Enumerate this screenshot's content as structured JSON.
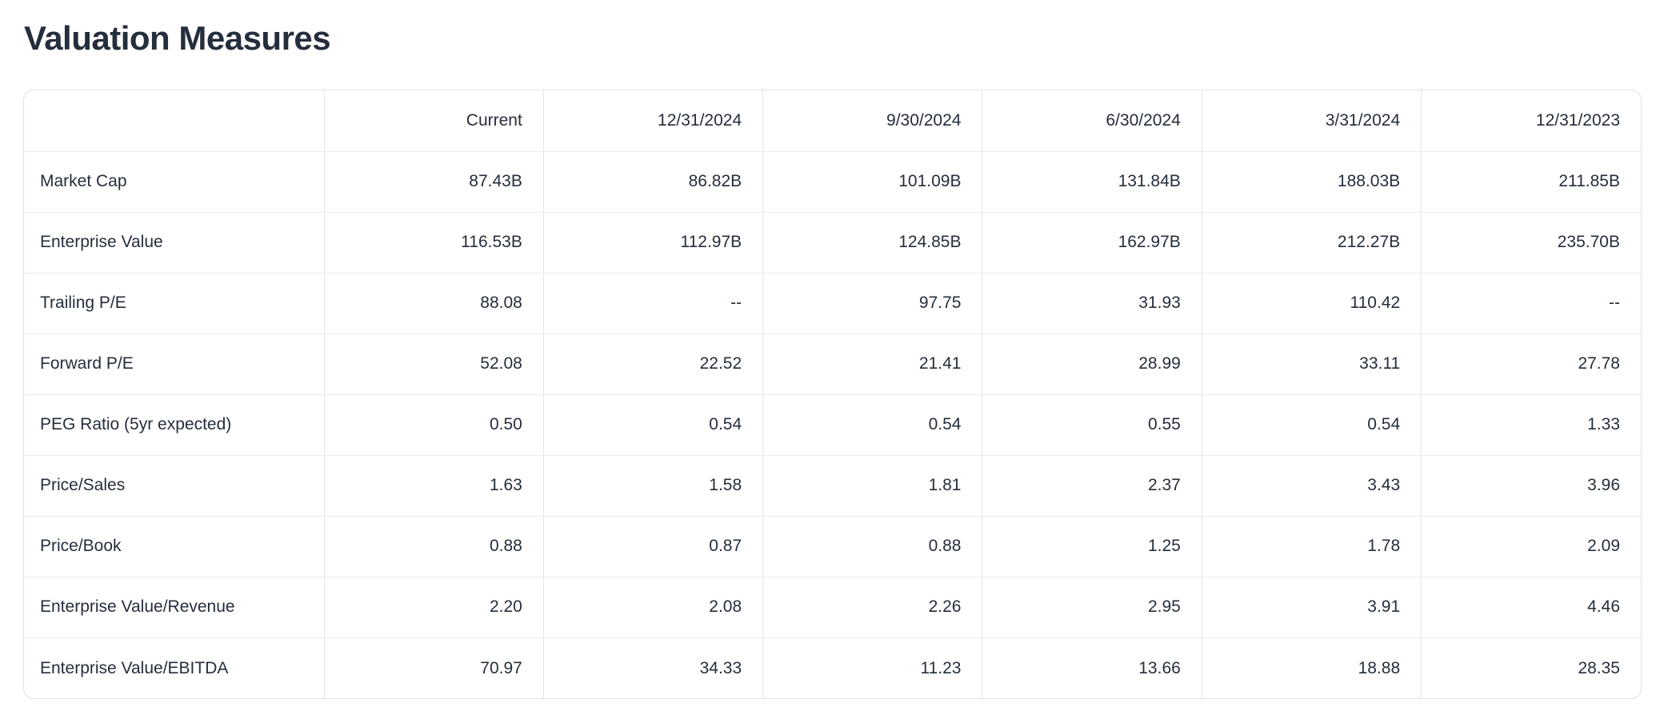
{
  "page": {
    "title": "Valuation Measures"
  },
  "colors": {
    "text": "#252e3c",
    "card_border": "#dde1e7",
    "row_divider": "#e7eaee",
    "column_divider": "#e0e4e9",
    "background": "#ffffff"
  },
  "table": {
    "columns": [
      "",
      "Current",
      "12/31/2024",
      "9/30/2024",
      "6/30/2024",
      "3/31/2024",
      "12/31/2023"
    ],
    "rows": [
      {
        "label": "Market Cap",
        "values": [
          "87.43B",
          "86.82B",
          "101.09B",
          "131.84B",
          "188.03B",
          "211.85B"
        ]
      },
      {
        "label": "Enterprise Value",
        "values": [
          "116.53B",
          "112.97B",
          "124.85B",
          "162.97B",
          "212.27B",
          "235.70B"
        ]
      },
      {
        "label": "Trailing P/E",
        "values": [
          "88.08",
          "--",
          "97.75",
          "31.93",
          "110.42",
          "--"
        ]
      },
      {
        "label": "Forward P/E",
        "values": [
          "52.08",
          "22.52",
          "21.41",
          "28.99",
          "33.11",
          "27.78"
        ]
      },
      {
        "label": "PEG Ratio (5yr expected)",
        "values": [
          "0.50",
          "0.54",
          "0.54",
          "0.55",
          "0.54",
          "1.33"
        ]
      },
      {
        "label": "Price/Sales",
        "values": [
          "1.63",
          "1.58",
          "1.81",
          "2.37",
          "3.43",
          "3.96"
        ]
      },
      {
        "label": "Price/Book",
        "values": [
          "0.88",
          "0.87",
          "0.88",
          "1.25",
          "1.78",
          "2.09"
        ]
      },
      {
        "label": "Enterprise Value/Revenue",
        "values": [
          "2.20",
          "2.08",
          "2.26",
          "2.95",
          "3.91",
          "4.46"
        ]
      },
      {
        "label": "Enterprise Value/EBITDA",
        "values": [
          "70.97",
          "34.33",
          "11.23",
          "13.66",
          "18.88",
          "28.35"
        ]
      }
    ]
  }
}
